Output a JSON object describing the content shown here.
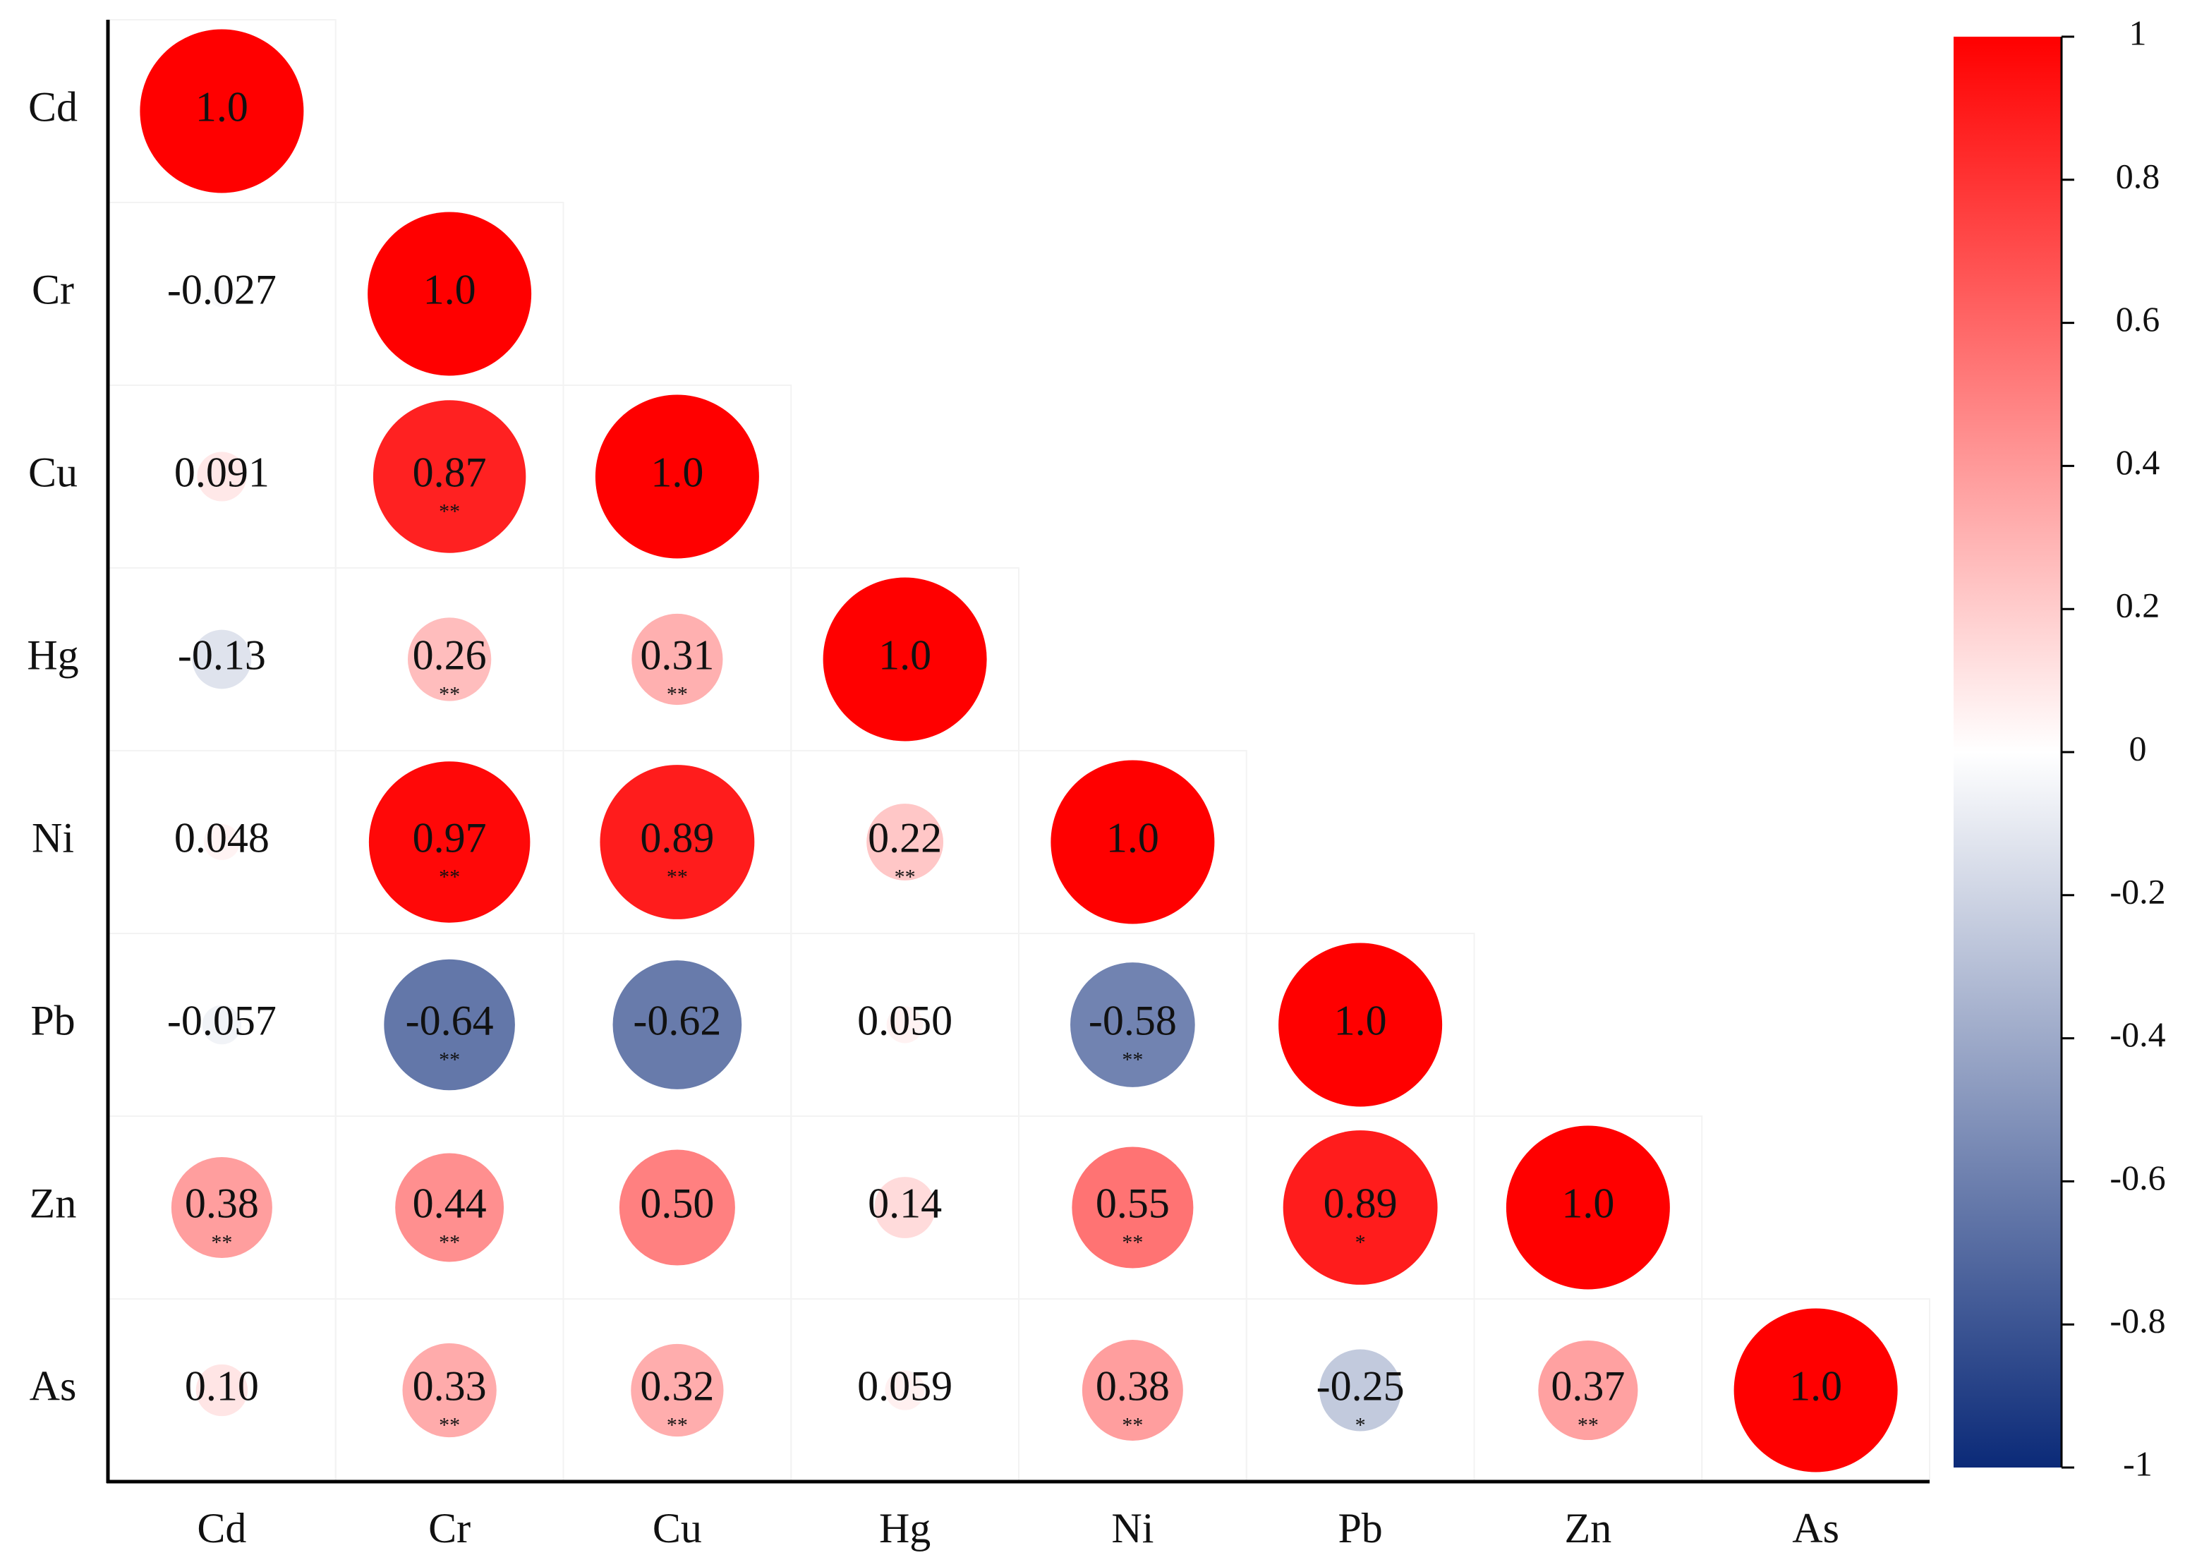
{
  "chart_data": {
    "type": "correlogram",
    "categories": [
      "Cd",
      "Cr",
      "Cu",
      "Hg",
      "Ni",
      "Pb",
      "Zn",
      "As"
    ],
    "matrix": [
      [
        1.0
      ],
      [
        -0.027,
        1.0
      ],
      [
        0.091,
        0.87,
        1.0
      ],
      [
        -0.13,
        0.26,
        0.31,
        1.0
      ],
      [
        0.048,
        0.97,
        0.89,
        0.22,
        1.0
      ],
      [
        -0.057,
        -0.64,
        -0.62,
        0.05,
        -0.58,
        1.0
      ],
      [
        0.38,
        0.44,
        0.5,
        0.14,
        0.55,
        0.89,
        1.0
      ],
      [
        0.1,
        0.33,
        0.32,
        0.059,
        0.38,
        -0.25,
        0.37,
        1.0
      ]
    ],
    "value_labels": [
      [
        "1.0"
      ],
      [
        "-0.027",
        "1.0"
      ],
      [
        "0.091",
        "0.87",
        "1.0"
      ],
      [
        "-0.13",
        "0.26",
        "0.31",
        "1.0"
      ],
      [
        "0.048",
        "0.97",
        "0.89",
        "0.22",
        "1.0"
      ],
      [
        "-0.057",
        "-0.64",
        "-0.62",
        "0.050",
        "-0.58",
        "1.0"
      ],
      [
        "0.38",
        "0.44",
        "0.50",
        "0.14",
        "0.55",
        "0.89",
        "1.0"
      ],
      [
        "0.10",
        "0.33",
        "0.32",
        "0.059",
        "0.38",
        "-0.25",
        "0.37",
        "1.0"
      ]
    ],
    "significance": [
      [
        null
      ],
      [
        null,
        null
      ],
      [
        null,
        "**",
        null
      ],
      [
        null,
        "**",
        "**",
        null
      ],
      [
        null,
        "**",
        "**",
        "**",
        null
      ],
      [
        null,
        "**",
        null,
        null,
        "**",
        null
      ],
      [
        "**",
        "**",
        null,
        null,
        "**",
        "*",
        null
      ],
      [
        null,
        "**",
        "**",
        null,
        "**",
        "*",
        "**",
        null
      ]
    ],
    "colormap": [
      "#0b2a78",
      "#ffffff",
      "#ff0000"
    ],
    "clim": [
      -1,
      1
    ],
    "cticks": [
      1,
      0.8,
      0.6,
      0.4,
      0.2,
      0,
      -0.2,
      -0.4,
      -0.6,
      -0.8,
      -1
    ]
  }
}
